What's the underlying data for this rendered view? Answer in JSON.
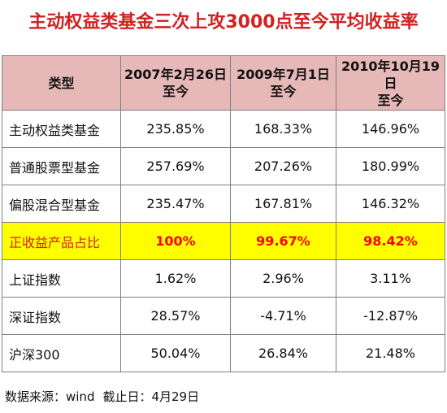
{
  "title": "主动权益类基金三次上攻3000点至今平均收益率",
  "table": {
    "headers": [
      {
        "line1": "类型",
        "line2": ""
      },
      {
        "line1": "2007年2月26日",
        "line2": "至今"
      },
      {
        "line1": "2009年7月1日",
        "line2": "至今"
      },
      {
        "line1": "2010年10月19日",
        "line2": "至今"
      }
    ],
    "rows": [
      {
        "name": "主动权益类基金",
        "values": [
          "235.85%",
          "168.33%",
          "146.96%"
        ],
        "highlight": false
      },
      {
        "name": "普通股票型基金",
        "values": [
          "257.69%",
          "207.26%",
          "180.99%"
        ],
        "highlight": false
      },
      {
        "name": "偏股混合型基金",
        "values": [
          "235.47%",
          "167.81%",
          "146.32%"
        ],
        "highlight": false
      },
      {
        "name": "正收益产品占比",
        "values": [
          "100%",
          "99.67%",
          "98.42%"
        ],
        "highlight": true
      },
      {
        "name": "上证指数",
        "values": [
          "1.62%",
          "2.96%",
          "3.11%"
        ],
        "highlight": false
      },
      {
        "name": "深证指数",
        "values": [
          "28.57%",
          "-4.71%",
          "-12.87%"
        ],
        "highlight": false
      },
      {
        "name": "沪深300",
        "values": [
          "50.04%",
          "26.84%",
          "21.48%"
        ],
        "highlight": false
      }
    ]
  },
  "source": {
    "data_source": "数据来源：wind",
    "cutoff": "截止日：4月29日"
  },
  "colors": {
    "title": "#d42020",
    "header_bg": "#e6b8b7",
    "highlight_bg": "#ffff00",
    "highlight_text": "#ff0000",
    "border": "#7f7f7f"
  }
}
